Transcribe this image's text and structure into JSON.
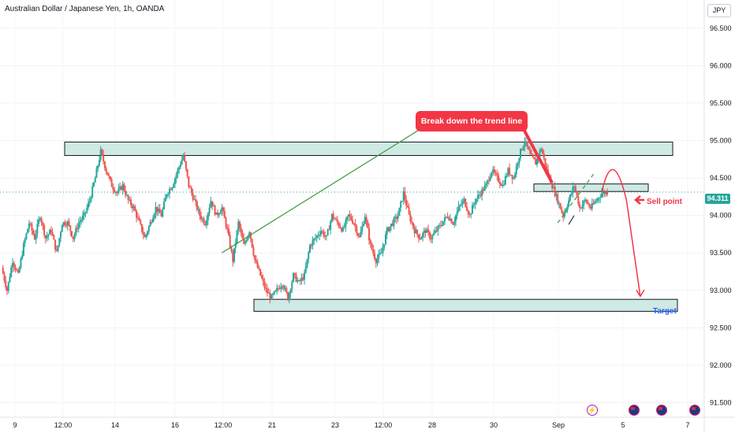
{
  "header": {
    "title": "Australian Dollar / Japanese Yen, 1h, OANDA",
    "currency": "JPY"
  },
  "price_badge": "94.311",
  "annotations": {
    "callout": "Break down the trend line",
    "sell_point": "Sell point",
    "target": "Target"
  },
  "colors": {
    "up": "#26a69a",
    "down": "#ef5350",
    "zone_fill": "#cfe9e4",
    "trend": "#43a047",
    "callout": "#f23645",
    "target_text": "#2962ff"
  },
  "icons": [
    "flash-icon",
    "flag-icon",
    "flag-icon",
    "flag-icon"
  ],
  "chart_data": {
    "type": "candlestick",
    "ylim": [
      91.4,
      96.75
    ],
    "y_ticks": [
      "96.500",
      "96.000",
      "95.500",
      "95.000",
      "94.500",
      "94.000",
      "93.500",
      "93.000",
      "92.500",
      "92.000",
      "91.500"
    ],
    "x_ticks": [
      "9",
      "12:00",
      "14",
      "16",
      "12:00",
      "21",
      "23",
      "12:00",
      "28",
      "30",
      "Sep",
      "5",
      "7"
    ],
    "last_price": 94.311,
    "resistance_zone": [
      94.8,
      94.98
    ],
    "retest_zone": [
      94.32,
      94.42
    ],
    "target_zone": [
      92.72,
      92.88
    ],
    "price_path": [
      [
        0,
        93.3
      ],
      [
        2,
        93.0
      ],
      [
        4,
        93.4
      ],
      [
        6,
        93.2
      ],
      [
        8,
        93.6
      ],
      [
        10,
        93.9
      ],
      [
        12,
        93.7
      ],
      [
        14,
        94.0
      ],
      [
        16,
        93.7
      ],
      [
        18,
        93.8
      ],
      [
        20,
        93.5
      ],
      [
        22,
        93.9
      ],
      [
        24,
        93.9
      ],
      [
        26,
        93.7
      ],
      [
        28,
        93.9
      ],
      [
        30,
        94.0
      ],
      [
        32,
        94.2
      ],
      [
        34,
        94.5
      ],
      [
        36,
        94.85
      ],
      [
        38,
        94.6
      ],
      [
        40,
        94.4
      ],
      [
        42,
        94.3
      ],
      [
        44,
        94.4
      ],
      [
        46,
        94.2
      ],
      [
        48,
        94.1
      ],
      [
        50,
        93.9
      ],
      [
        52,
        93.7
      ],
      [
        54,
        93.9
      ],
      [
        56,
        94.1
      ],
      [
        58,
        94.0
      ],
      [
        60,
        94.3
      ],
      [
        62,
        94.4
      ],
      [
        64,
        94.6
      ],
      [
        66,
        94.8
      ],
      [
        68,
        94.4
      ],
      [
        70,
        94.2
      ],
      [
        72,
        94.0
      ],
      [
        74,
        93.9
      ],
      [
        76,
        94.2
      ],
      [
        78,
        94.0
      ],
      [
        80,
        94.1
      ],
      [
        82,
        93.8
      ],
      [
        84,
        93.4
      ],
      [
        86,
        93.9
      ],
      [
        88,
        93.6
      ],
      [
        90,
        93.8
      ],
      [
        92,
        93.4
      ],
      [
        94,
        93.2
      ],
      [
        96,
        93.0
      ],
      [
        98,
        92.9
      ],
      [
        100,
        93.0
      ],
      [
        102,
        93.1
      ],
      [
        104,
        92.9
      ],
      [
        106,
        93.2
      ],
      [
        108,
        93.1
      ],
      [
        110,
        93.2
      ],
      [
        112,
        93.6
      ],
      [
        114,
        93.7
      ],
      [
        116,
        93.8
      ],
      [
        118,
        93.7
      ],
      [
        120,
        94.0
      ],
      [
        122,
        93.9
      ],
      [
        124,
        93.8
      ],
      [
        126,
        94.0
      ],
      [
        128,
        93.9
      ],
      [
        130,
        93.7
      ],
      [
        132,
        94.0
      ],
      [
        134,
        93.6
      ],
      [
        136,
        93.4
      ],
      [
        138,
        93.5
      ],
      [
        140,
        93.8
      ],
      [
        142,
        93.9
      ],
      [
        144,
        94.0
      ],
      [
        146,
        94.3
      ],
      [
        148,
        94.0
      ],
      [
        150,
        93.8
      ],
      [
        152,
        93.7
      ],
      [
        154,
        93.8
      ],
      [
        156,
        93.7
      ],
      [
        158,
        93.8
      ],
      [
        160,
        93.9
      ],
      [
        162,
        94.0
      ],
      [
        164,
        93.9
      ],
      [
        166,
        94.1
      ],
      [
        168,
        94.2
      ],
      [
        170,
        94.0
      ],
      [
        172,
        94.2
      ],
      [
        174,
        94.3
      ],
      [
        176,
        94.4
      ],
      [
        178,
        94.6
      ],
      [
        180,
        94.5
      ],
      [
        182,
        94.4
      ],
      [
        184,
        94.6
      ],
      [
        186,
        94.5
      ],
      [
        188,
        94.8
      ],
      [
        190,
        95.0
      ],
      [
        192,
        94.8
      ],
      [
        194,
        94.7
      ],
      [
        196,
        94.9
      ],
      [
        198,
        94.6
      ],
      [
        200,
        94.4
      ],
      [
        202,
        94.2
      ],
      [
        204,
        94.0
      ],
      [
        206,
        94.2
      ],
      [
        208,
        94.4
      ],
      [
        210,
        94.1
      ],
      [
        212,
        94.2
      ],
      [
        214,
        94.1
      ],
      [
        216,
        94.2
      ],
      [
        218,
        94.3
      ],
      [
        220,
        94.31
      ]
    ],
    "trend_line": [
      [
        80.0,
        93.5
      ],
      [
        152.0,
        95.15
      ]
    ],
    "channel_line": [
      [
        202.0,
        93.9
      ],
      [
        215.0,
        94.55
      ]
    ],
    "projection": [
      [
        218.0,
        94.31
      ],
      [
        222.0,
        94.65
      ],
      [
        227.0,
        94.2
      ],
      [
        232.0,
        92.92
      ]
    ]
  }
}
